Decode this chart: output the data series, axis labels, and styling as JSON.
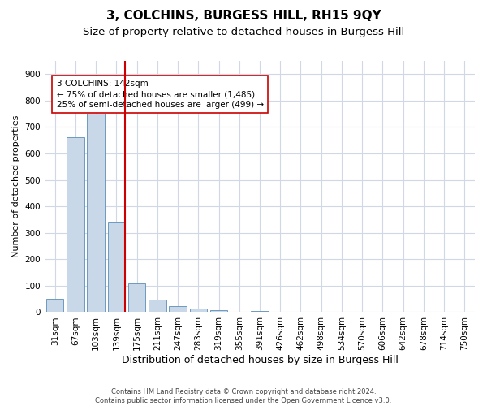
{
  "title": "3, COLCHINS, BURGESS HILL, RH15 9QY",
  "subtitle": "Size of property relative to detached houses in Burgess Hill",
  "xlabel": "Distribution of detached houses by size in Burgess Hill",
  "ylabel": "Number of detached properties",
  "footer_line1": "Contains HM Land Registry data © Crown copyright and database right 2024.",
  "footer_line2": "Contains public sector information licensed under the Open Government Licence v3.0.",
  "bin_labels": [
    "31sqm",
    "67sqm",
    "103sqm",
    "139sqm",
    "175sqm",
    "211sqm",
    "247sqm",
    "283sqm",
    "319sqm",
    "355sqm",
    "391sqm",
    "426sqm",
    "462sqm",
    "498sqm",
    "534sqm",
    "570sqm",
    "606sqm",
    "642sqm",
    "678sqm",
    "714sqm",
    "750sqm"
  ],
  "bar_heights": [
    50,
    660,
    750,
    340,
    108,
    48,
    22,
    14,
    9,
    0,
    5,
    0,
    0,
    0,
    0,
    0,
    0,
    0,
    0,
    0,
    0
  ],
  "bar_color": "#c8d8e8",
  "bar_edge_color": "#5b8db8",
  "vline_color": "#cc0000",
  "annotation_text": "3 COLCHINS: 142sqm\n← 75% of detached houses are smaller (1,485)\n25% of semi-detached houses are larger (499) →",
  "annotation_box_color": "#ffffff",
  "annotation_box_edge_color": "#cc0000",
  "ylim": [
    0,
    950
  ],
  "yticks": [
    0,
    100,
    200,
    300,
    400,
    500,
    600,
    700,
    800,
    900
  ],
  "background_color": "#ffffff",
  "grid_color": "#d0d8e8",
  "title_fontsize": 11,
  "subtitle_fontsize": 9.5,
  "xlabel_fontsize": 9,
  "ylabel_fontsize": 8,
  "tick_fontsize": 7.5,
  "annotation_fontsize": 7.5,
  "footer_fontsize": 6
}
